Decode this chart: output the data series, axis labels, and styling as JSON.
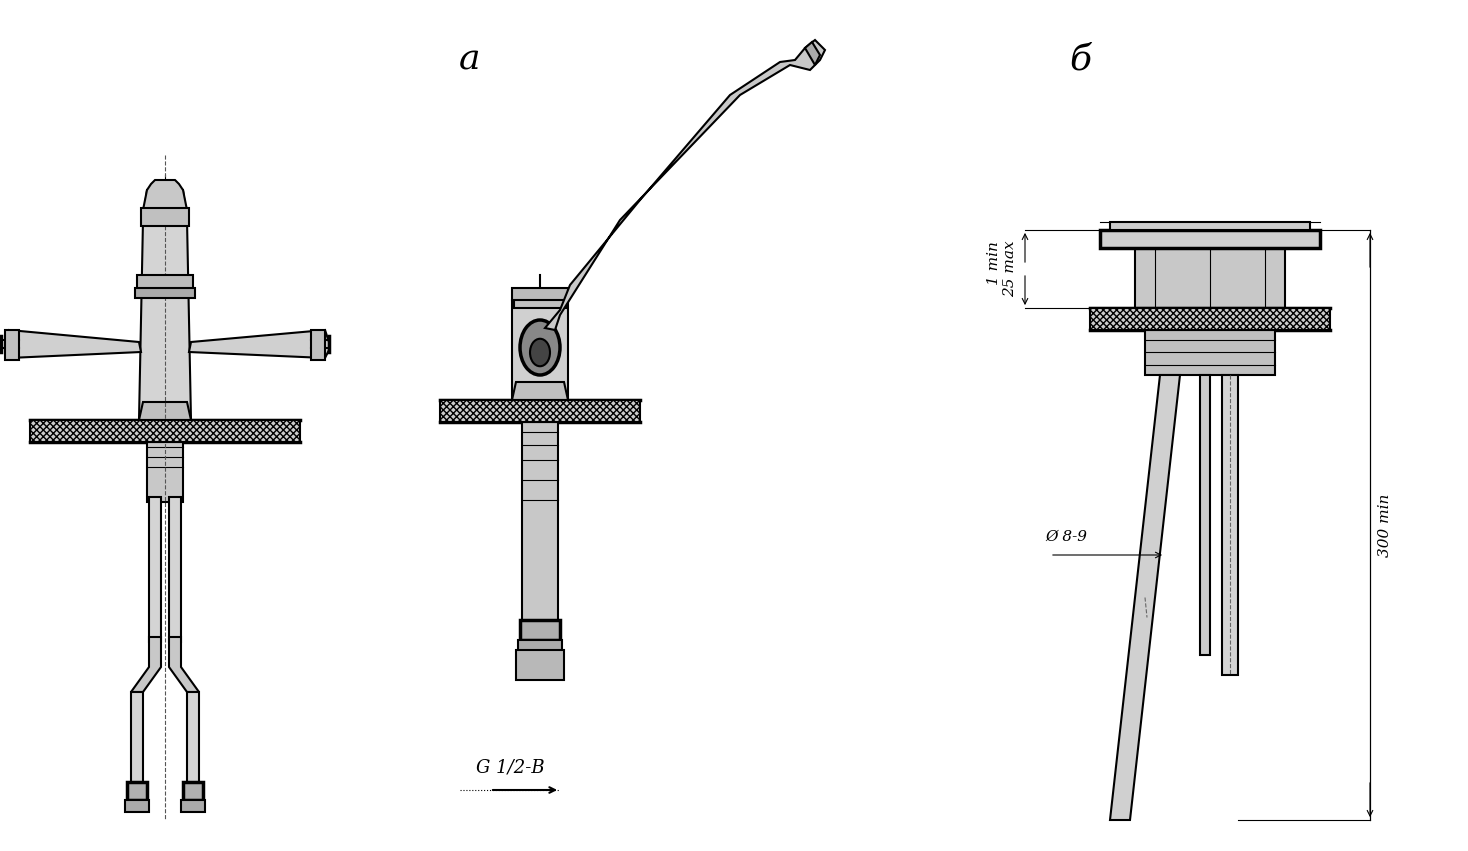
{
  "bg_color": "#ffffff",
  "label_a": "a",
  "label_b": "б",
  "label_G": "G 1/2-B",
  "label_1min25max": "1 min\n25 max",
  "label_300min": "300 min",
  "label_d89": "Ø 8-9",
  "figsize": [
    14.68,
    8.51
  ],
  "dpi": 100,
  "line_color": "#000000",
  "hatch_color": "#000000",
  "draw_color": "#1a1a1a"
}
